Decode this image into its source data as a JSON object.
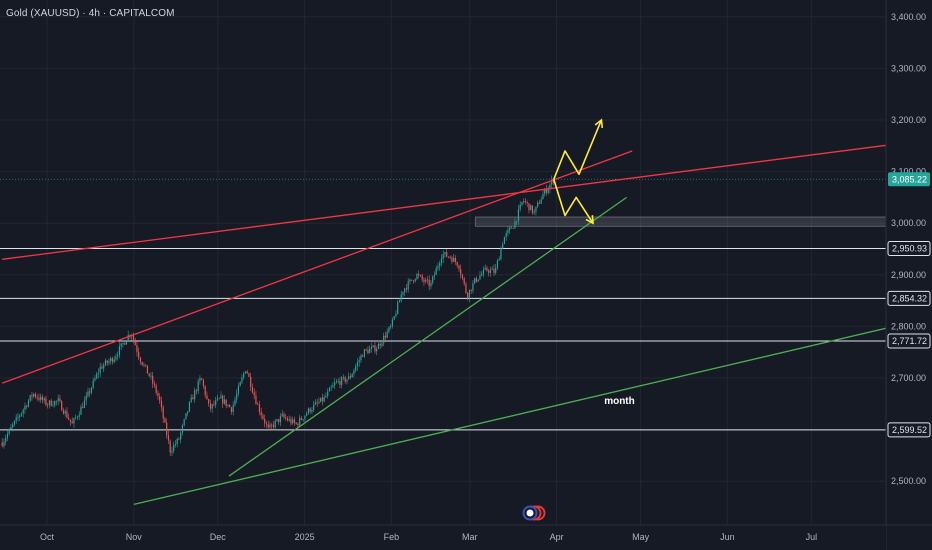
{
  "header": {
    "title": "Gold (XAUUSD) · 4h · CAPITALCOM"
  },
  "chart_data": {
    "type": "candlestick",
    "symbol": "Gold (XAUUSD)",
    "timeframe": "4h",
    "source": "CAPITALCOM",
    "y_ticks": [
      {
        "value": 2500,
        "label": "2,500.00"
      },
      {
        "value": 2600,
        "label": "2,600.00"
      },
      {
        "value": 2700,
        "label": "2,700.00"
      },
      {
        "value": 2800,
        "label": "2,800.00"
      },
      {
        "value": 2900,
        "label": "2,900.00"
      },
      {
        "value": 3000,
        "label": "3,000.00"
      },
      {
        "value": 3100,
        "label": "3,100.00"
      },
      {
        "value": 3200,
        "label": "3,200.00"
      },
      {
        "value": 3300,
        "label": "3,300.00"
      },
      {
        "value": 3400,
        "label": "3,400.00"
      }
    ],
    "x_ticks": [
      {
        "date": "2024-10-01",
        "label": "Oct"
      },
      {
        "date": "2024-11-01",
        "label": "Nov"
      },
      {
        "date": "2024-12-01",
        "label": "Dec"
      },
      {
        "date": "2025-01-01",
        "label": "2025"
      },
      {
        "date": "2025-02-01",
        "label": "Feb"
      },
      {
        "date": "2025-03-01",
        "label": "Mar"
      },
      {
        "date": "2025-04-01",
        "label": "Apr"
      },
      {
        "date": "2025-05-01",
        "label": "May"
      },
      {
        "date": "2025-06-01",
        "label": "Jun"
      },
      {
        "date": "2025-07-01",
        "label": "Jul"
      }
    ],
    "current_price": {
      "value": 3085.22,
      "label": "3,085.22",
      "color": "#26a69a"
    },
    "horizontal_levels": [
      {
        "value": 2950.93,
        "label": "2,950.93",
        "color": "#e0e3eb"
      },
      {
        "value": 2854.32,
        "label": "2,854.32",
        "color": "#e0e3eb"
      },
      {
        "value": 2771.72,
        "label": "2,771.72",
        "color": "#e0e3eb"
      },
      {
        "value": 2599.52,
        "label": "2,599.52",
        "color": "#e0e3eb"
      }
    ],
    "zone": {
      "from_date": "2025-03-03",
      "to_date": "2025-08-31",
      "low": 2994,
      "high": 3012,
      "color": "#9598a1"
    },
    "price_series": [
      [
        "2024-09-15",
        2575
      ],
      [
        "2024-09-20",
        2618
      ],
      [
        "2024-09-26",
        2670
      ],
      [
        "2024-10-01",
        2650
      ],
      [
        "2024-10-05",
        2655
      ],
      [
        "2024-10-10",
        2610
      ],
      [
        "2024-10-15",
        2660
      ],
      [
        "2024-10-20",
        2720
      ],
      [
        "2024-10-25",
        2740
      ],
      [
        "2024-10-31",
        2790
      ],
      [
        "2024-11-03",
        2740
      ],
      [
        "2024-11-07",
        2700
      ],
      [
        "2024-11-10",
        2660
      ],
      [
        "2024-11-14",
        2560
      ],
      [
        "2024-11-17",
        2580
      ],
      [
        "2024-11-21",
        2650
      ],
      [
        "2024-11-25",
        2700
      ],
      [
        "2024-11-28",
        2640
      ],
      [
        "2024-12-02",
        2660
      ],
      [
        "2024-12-06",
        2640
      ],
      [
        "2024-12-11",
        2720
      ],
      [
        "2024-12-15",
        2650
      ],
      [
        "2024-12-19",
        2600
      ],
      [
        "2024-12-24",
        2625
      ],
      [
        "2024-12-29",
        2610
      ],
      [
        "2025-01-03",
        2640
      ],
      [
        "2025-01-08",
        2660
      ],
      [
        "2025-01-12",
        2690
      ],
      [
        "2025-01-17",
        2700
      ],
      [
        "2025-01-22",
        2750
      ],
      [
        "2025-01-27",
        2760
      ],
      [
        "2025-02-01",
        2800
      ],
      [
        "2025-02-05",
        2870
      ],
      [
        "2025-02-10",
        2900
      ],
      [
        "2025-02-12",
        2890
      ],
      [
        "2025-02-15",
        2880
      ],
      [
        "2025-02-19",
        2940
      ],
      [
        "2025-02-22",
        2935
      ],
      [
        "2025-02-25",
        2920
      ],
      [
        "2025-02-28",
        2860
      ],
      [
        "2025-03-03",
        2890
      ],
      [
        "2025-03-07",
        2910
      ],
      [
        "2025-03-10",
        2905
      ],
      [
        "2025-03-13",
        2970
      ],
      [
        "2025-03-17",
        3000
      ],
      [
        "2025-03-20",
        3045
      ],
      [
        "2025-03-24",
        3020
      ],
      [
        "2025-03-27",
        3055
      ],
      [
        "2025-03-31",
        3085
      ]
    ],
    "trendlines": [
      {
        "color": "#f23645",
        "from": [
          "2024-09-15",
          2930
        ],
        "to": [
          "2025-08-31",
          3175
        ]
      },
      {
        "color": "#f23645",
        "from": [
          "2024-09-15",
          2690
        ],
        "to": [
          "2025-04-28",
          3140
        ]
      },
      {
        "color": "#4caf50",
        "from": [
          "2024-12-05",
          2510
        ],
        "to": [
          "2025-04-26",
          3050
        ]
      },
      {
        "color": "#4caf50",
        "from": [
          "2024-11-01",
          2455
        ],
        "to": [
          "2025-08-31",
          2840
        ]
      }
    ],
    "projections": [
      {
        "color": "#ffeb3b",
        "points": [
          [
            "2025-03-31",
            3085
          ],
          [
            "2025-04-04",
            3140
          ],
          [
            "2025-04-09",
            3095
          ],
          [
            "2025-04-17",
            3200
          ]
        ]
      },
      {
        "color": "#ffeb3b",
        "points": [
          [
            "2025-03-31",
            3085
          ],
          [
            "2025-04-04",
            3015
          ],
          [
            "2025-04-08",
            3050
          ],
          [
            "2025-04-14",
            3000
          ]
        ]
      }
    ],
    "annotations": [
      {
        "text": "month",
        "date": "2025-04-18",
        "value": 2650
      }
    ]
  }
}
